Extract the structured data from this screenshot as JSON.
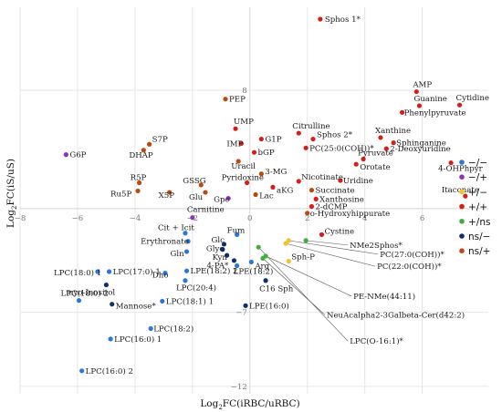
{
  "chart_data": {
    "type": "scatter",
    "title": "",
    "xlabel_main": "Log",
    "xlabel_sub": "2",
    "xlabel_rest": "FC(iRBC/uRBC)",
    "ylabel_main": "Log",
    "ylabel_sub": "2",
    "ylabel_rest": "FC(iS/uS)",
    "xlim": [
      -8,
      8.3
    ],
    "ylim": [
      -12.5,
      13.6
    ],
    "x_ticks": [
      -8,
      -6,
      -4,
      -2,
      0,
      2,
      4,
      6
    ],
    "x_tick_labels": [
      "−8",
      "−6",
      "−4",
      "−2",
      "0",
      "2",
      "4",
      "6"
    ],
    "y_ticks": [
      -12,
      -7,
      8
    ],
    "y_tick_labels": [
      "−12",
      "−7",
      "8"
    ],
    "grid": true,
    "legend_position": "right",
    "colors": {
      "--": "#2a77d6",
      "-+": "#8a35b8",
      "+-": "#f2c22a",
      "++": "#d91e18",
      "+ns": "#3fae3f",
      "ns-": "#0e2f6b",
      "ns+": "#bb4a0c"
    },
    "legend": [
      {
        "key": "--",
        "label": "−/−"
      },
      {
        "key": "-+",
        "label": "−/+"
      },
      {
        "key": "+-",
        "label": "+/−"
      },
      {
        "key": "++",
        "label": "+/+"
      },
      {
        "key": "+ns",
        "label": "+/ns"
      },
      {
        "key": "ns-",
        "label": "ns/−"
      },
      {
        "key": "ns+",
        "label": "ns/+"
      }
    ],
    "points": [
      {
        "name": "Sphos 1*",
        "x": 2.45,
        "y": 12.8,
        "g": "++",
        "dx": 5,
        "dy": 3
      },
      {
        "name": "AMP",
        "x": 5.8,
        "y": 7.9,
        "g": "++",
        "dx": -4,
        "dy": -5
      },
      {
        "name": "Cytidine",
        "x": 7.3,
        "y": 7.0,
        "g": "++",
        "dx": -4,
        "dy": -5
      },
      {
        "name": "Guanine",
        "x": 5.9,
        "y": 6.95,
        "g": "++",
        "dx": -6,
        "dy": -5
      },
      {
        "name": "Phenylpyruvate",
        "x": 5.3,
        "y": 6.5,
        "g": "++",
        "dx": 2,
        "dy": 3
      },
      {
        "name": "PEP",
        "x": -0.85,
        "y": 7.4,
        "g": "ns+",
        "dx": 4,
        "dy": 3
      },
      {
        "name": "UMP",
        "x": -0.5,
        "y": 5.4,
        "g": "++",
        "dx": -2,
        "dy": -5
      },
      {
        "name": "Citrulline",
        "x": 1.7,
        "y": 5.1,
        "g": "++",
        "dx": -7,
        "dy": -5
      },
      {
        "name": "G1P",
        "x": 0.4,
        "y": 4.7,
        "g": "++",
        "dx": 4,
        "dy": 3
      },
      {
        "name": "IMP",
        "x": -0.3,
        "y": 4.4,
        "g": "++",
        "dx": -16,
        "dy": 3
      },
      {
        "name": "Sphos 2*",
        "x": 2.2,
        "y": 4.7,
        "g": "++",
        "dx": 4,
        "dy": -2
      },
      {
        "name": "PC(25:0(COH))*",
        "x": 1.95,
        "y": 4.1,
        "g": "++",
        "dx": 4,
        "dy": 3
      },
      {
        "name": "Xanthine",
        "x": 4.55,
        "y": 4.8,
        "g": "++",
        "dx": -6,
        "dy": -5
      },
      {
        "name": "Sphinganine",
        "x": 5.0,
        "y": 4.45,
        "g": "++",
        "dx": 3,
        "dy": 3
      },
      {
        "name": "2-Deoxyuridine",
        "x": 4.75,
        "y": 4.05,
        "g": "++",
        "dx": 4,
        "dy": 3
      },
      {
        "name": "G6P",
        "x": -6.4,
        "y": 3.65,
        "g": "-+",
        "dx": 4,
        "dy": 3
      },
      {
        "name": "S7P",
        "x": -3.5,
        "y": 4.35,
        "g": "ns+",
        "dx": 3,
        "dy": -3
      },
      {
        "name": "DHAP",
        "x": -3.7,
        "y": 3.95,
        "g": "ns+",
        "dx": -16,
        "dy": 8
      },
      {
        "name": "bGP",
        "x": 0.15,
        "y": 3.8,
        "g": "++",
        "dx": 4,
        "dy": 3
      },
      {
        "name": "Uracil",
        "x": -0.4,
        "y": 3.2,
        "g": "ns+",
        "dx": -8,
        "dy": 8
      },
      {
        "name": "3-MG",
        "x": 0.4,
        "y": 2.35,
        "g": "ns+",
        "dx": 4,
        "dy": 0
      },
      {
        "name": "Pyruvate",
        "x": 3.95,
        "y": 3.35,
        "g": "++",
        "dx": -6,
        "dy": -4
      },
      {
        "name": "Orotate",
        "x": 3.7,
        "y": 3.0,
        "g": "++",
        "dx": 4,
        "dy": 6
      },
      {
        "name": "4-OHPhpyr",
        "x": 7.0,
        "y": 3.1,
        "g": "++",
        "dx": -14,
        "dy": 9
      },
      {
        "name": "R5P",
        "x": -3.85,
        "y": 1.75,
        "g": "ns+",
        "dx": -10,
        "dy": -3
      },
      {
        "name": "GSSG",
        "x": -1.7,
        "y": 1.6,
        "g": "ns+",
        "dx": -20,
        "dy": -2
      },
      {
        "name": "Pyridoxine",
        "x": -0.1,
        "y": 1.75,
        "g": "++",
        "dx": -28,
        "dy": -3
      },
      {
        "name": "aKG",
        "x": 0.8,
        "y": 1.45,
        "g": "++",
        "dx": 4,
        "dy": 6
      },
      {
        "name": "Nicotinate",
        "x": 1.7,
        "y": 1.85,
        "g": "++",
        "dx": 3,
        "dy": -2
      },
      {
        "name": "Uridine",
        "x": 3.15,
        "y": 1.9,
        "g": "++",
        "dx": 3,
        "dy": 3
      },
      {
        "name": "Succinate",
        "x": 2.15,
        "y": 1.25,
        "g": "ns+",
        "dx": 4,
        "dy": 3
      },
      {
        "name": "Ru5P",
        "x": -3.9,
        "y": 1.2,
        "g": "ns+",
        "dx": -30,
        "dy": 6
      },
      {
        "name": "X5P",
        "x": -2.8,
        "y": 1.1,
        "g": "ns+",
        "dx": -12,
        "dy": 6
      },
      {
        "name": "Glu",
        "x": -1.55,
        "y": 1.1,
        "g": "ns+",
        "dx": -18,
        "dy": 8
      },
      {
        "name": "Gpc",
        "x": -0.75,
        "y": 0.7,
        "g": "-+",
        "dx": -16,
        "dy": 4
      },
      {
        "name": "Lac",
        "x": 0.2,
        "y": 0.95,
        "g": "ns+",
        "dx": 4,
        "dy": 4
      },
      {
        "name": "Itaconate",
        "x": 7.5,
        "y": 0.85,
        "g": "++",
        "dx": -26,
        "dy": -4
      },
      {
        "name": "Xanthosine",
        "x": 2.3,
        "y": 0.65,
        "g": "++",
        "dx": 4,
        "dy": 3
      },
      {
        "name": "2-dCMP",
        "x": 2.15,
        "y": 0.15,
        "g": "++",
        "dx": 4,
        "dy": 3
      },
      {
        "name": "o-Hydroxyhippurate",
        "x": 2.0,
        "y": -0.3,
        "g": "ns+",
        "dx": 3,
        "dy": 3
      },
      {
        "name": "Carnitine",
        "x": -2.0,
        "y": -0.6,
        "g": "-+",
        "dx": -6,
        "dy": -6
      },
      {
        "name": "Cit + Icit",
        "x": -2.25,
        "y": -1.65,
        "g": "--",
        "dx": -30,
        "dy": -3
      },
      {
        "name": "Fum",
        "x": -0.45,
        "y": -1.75,
        "g": "--",
        "dx": -11,
        "dy": -2
      },
      {
        "name": "Cystine",
        "x": 2.5,
        "y": -1.75,
        "g": "++",
        "dx": 3,
        "dy": -1
      },
      {
        "name": "Erythronate",
        "x": -2.15,
        "y": -2.2,
        "g": "--",
        "dx": -52,
        "dy": 3
      },
      {
        "name": "Glc",
        "x": -0.9,
        "y": -2.4,
        "g": "ns-",
        "dx": -14,
        "dy": -2
      },
      {
        "name": "Glyc",
        "x": -0.95,
        "y": -2.75,
        "g": "ns-",
        "dx": -18,
        "dy": 2
      },
      {
        "name": "Gln",
        "x": -2.2,
        "y": -2.9,
        "g": "--",
        "dx": -18,
        "dy": 5
      },
      {
        "name": "Kyn",
        "x": -0.8,
        "y": -3.15,
        "g": "ns-",
        "dx": -16,
        "dy": 5
      },
      {
        "name": "4-PA*",
        "x": -0.55,
        "y": -3.5,
        "g": "ns-",
        "dx": -30,
        "dy": 8
      },
      {
        "name": "Arg",
        "x": 0.05,
        "y": -3.6,
        "g": "--",
        "dx": 4,
        "dy": 7
      },
      {
        "name": "LPE(18:2)",
        "x": -0.45,
        "y": -3.85,
        "g": "--",
        "dx": -4,
        "dy": 9
      },
      {
        "name": "Sph-P",
        "x": 1.35,
        "y": -3.55,
        "g": "+-",
        "dx": 3,
        "dy": -2
      },
      {
        "name": "NMe2Sphos*",
        "x": 1.95,
        "y": -2.15,
        "g": "+ns",
        "dx": 48,
        "dy": 8,
        "leader": true
      },
      {
        "name": "PC(27:0(COH))*",
        "x": 1.35,
        "y": -2.15,
        "g": "+-",
        "dx": 100,
        "dy": 18,
        "leader": true
      },
      {
        "name": "PC(22:0(COH))*",
        "x": 1.25,
        "y": -2.35,
        "g": "+-",
        "dx": 100,
        "dy": 28,
        "leader": true
      },
      {
        "name": "PE-NMe(44:11)",
        "x": 0.55,
        "y": -3.2,
        "g": "+ns",
        "dx": 96,
        "dy": 47,
        "leader": true
      },
      {
        "name": "NeuAcalpha2-3Galbeta-Cer(d42:2)",
        "x": 0.45,
        "y": -3.35,
        "g": "+ns",
        "dx": 70,
        "dy": 65,
        "leader": true
      },
      {
        "name": "LPC(O-16:1)*",
        "x": 0.3,
        "y": -2.6,
        "g": "+ns",
        "dx": 100,
        "dy": 106,
        "leader": true
      },
      {
        "name": "C16 Sph",
        "x": 0.55,
        "y": -4.85,
        "g": "ns-",
        "dx": -7,
        "dy": 12
      },
      {
        "name": "LPC(18:0) 1",
        "x": -5.3,
        "y": -4.25,
        "g": "--",
        "dx": -48,
        "dy": 4
      },
      {
        "name": "LPC(17:0) 1",
        "x": -4.9,
        "y": -4.25,
        "g": "--",
        "dx": 4,
        "dy": 3
      },
      {
        "name": "Dho",
        "x": -2.95,
        "y": -4.35,
        "g": "--",
        "dx": -14,
        "dy": 5
      },
      {
        "name": "LPE(18:2) 2",
        "x": -2.2,
        "y": -4.2,
        "g": "--",
        "dx": 4,
        "dy": 3
      },
      {
        "name": "LPC(20:4)",
        "x": -2.25,
        "y": -4.85,
        "g": "--",
        "dx": -10,
        "dy": 11
      },
      {
        "name": "myo-Inositol",
        "x": -5.0,
        "y": -5.15,
        "g": "ns-",
        "dx": -44,
        "dy": 11
      },
      {
        "name": "LPC(18:0) 2",
        "x": -5.95,
        "y": -6.2,
        "g": "--",
        "dx": -20,
        "dy": -5
      },
      {
        "name": "Mannose*",
        "x": -4.8,
        "y": -6.45,
        "g": "ns-",
        "dx": 4,
        "dy": 5
      },
      {
        "name": "LPC(18:1) 1",
        "x": -3.05,
        "y": -6.25,
        "g": "--",
        "dx": 4,
        "dy": 3
      },
      {
        "name": "LPE(16:0)",
        "x": -0.15,
        "y": -6.55,
        "g": "ns-",
        "dx": 4,
        "dy": 3
      },
      {
        "name": "LPC(18:2)",
        "x": -3.45,
        "y": -8.1,
        "g": "--",
        "dx": 3,
        "dy": 3
      },
      {
        "name": "LPC(16:0) 1",
        "x": -4.85,
        "y": -8.8,
        "g": "--",
        "dx": 4,
        "dy": 3
      },
      {
        "name": "LPC(16:0) 2",
        "x": -5.85,
        "y": -10.95,
        "g": "--",
        "dx": 4,
        "dy": 3
      }
    ]
  }
}
